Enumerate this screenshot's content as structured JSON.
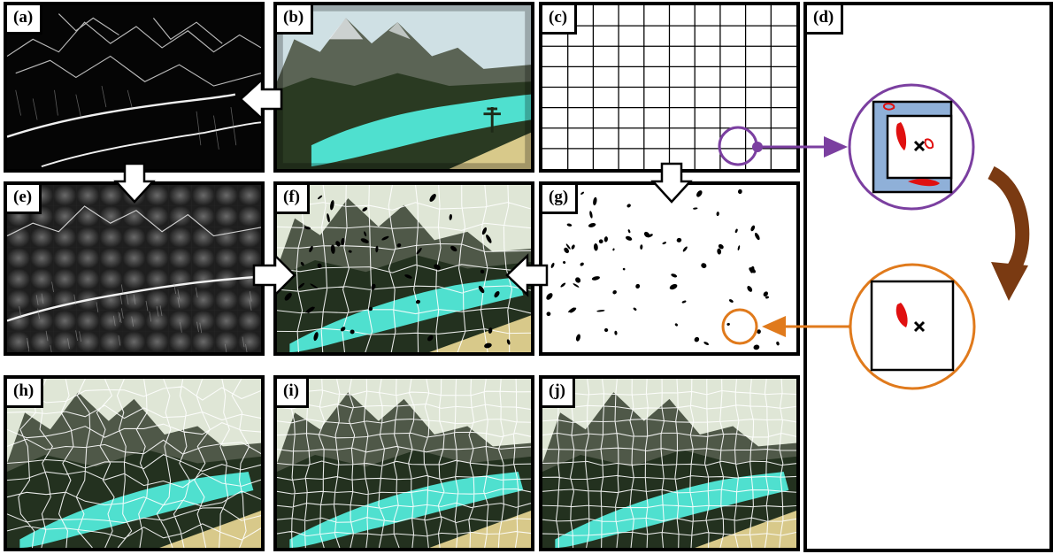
{
  "panels": [
    {
      "id": "a",
      "label": "(a)",
      "content": "edge-map"
    },
    {
      "id": "b",
      "label": "(b)",
      "content": "input-photo"
    },
    {
      "id": "c",
      "label": "(c)",
      "content": "grid"
    },
    {
      "id": "d",
      "label": "(d)",
      "content": "zoom-detail"
    },
    {
      "id": "e",
      "label": "(e)",
      "content": "edge-map-with-grid-distance"
    },
    {
      "id": "f",
      "label": "(f)",
      "content": "photo-with-segments-and-marks"
    },
    {
      "id": "g",
      "label": "(g)",
      "content": "seed-marks"
    },
    {
      "id": "h",
      "label": "(h)",
      "content": "photo-with-irregular-superpixels"
    },
    {
      "id": "i",
      "label": "(i)",
      "content": "photo-with-regular-superpixels"
    },
    {
      "id": "j",
      "label": "(j)",
      "content": "photo-with-regular-superpixels"
    }
  ],
  "colors": {
    "border": "#000000",
    "sky": "#dfe6d6",
    "mountain": "#4f5848",
    "forest": "#23311f",
    "lake": "#4fe0cf",
    "shore": "#d8c98a",
    "zoom_purple": "#7b3fa0",
    "zoom_orange": "#e07a1c",
    "curve_brown": "#7a3a12",
    "zoom_fill_blue": "#8fb0d8",
    "red_blob": "#e01010"
  },
  "icons": [
    "right-arrow-icon",
    "left-arrow-icon",
    "down-arrow-icon",
    "cross-marker-icon"
  ]
}
